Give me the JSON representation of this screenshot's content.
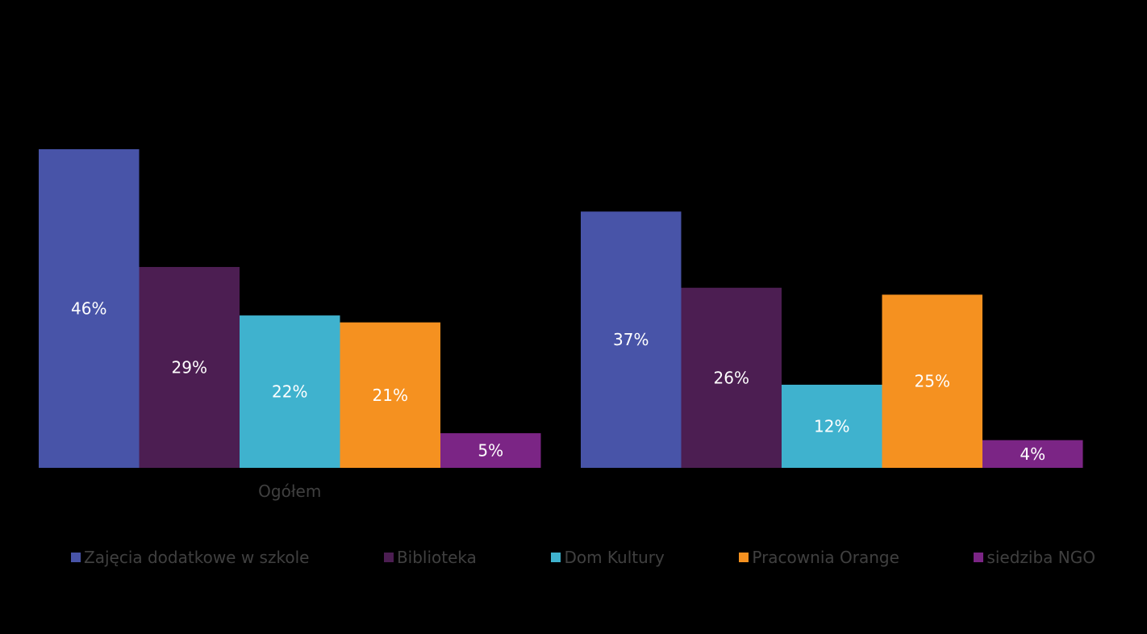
{
  "chart_data": {
    "type": "bar",
    "categories": [
      "Ogółem",
      ""
    ],
    "series": [
      {
        "name": "Zajęcia dodatkowe w szkole",
        "values": [
          46,
          37
        ],
        "color": "#4854A8",
        "labels": [
          "46%",
          "37%"
        ]
      },
      {
        "name": "Biblioteka",
        "values": [
          29,
          26
        ],
        "color": "#4C1E52",
        "labels": [
          "29%",
          "26%"
        ]
      },
      {
        "name": "Dom Kultury",
        "values": [
          22,
          12
        ],
        "color": "#3FB2CE",
        "labels": [
          "22%",
          "12%"
        ]
      },
      {
        "name": "Pracownia Orange",
        "values": [
          21,
          25
        ],
        "color": "#F59120",
        "labels": [
          "21%",
          "25%"
        ]
      },
      {
        "name": "siedziba NGO",
        "values": [
          5,
          4
        ],
        "color": "#7B2585",
        "labels": [
          "5%",
          "4%"
        ]
      }
    ],
    "ylim": [
      0,
      46
    ],
    "legend": "bottom",
    "grid": false
  }
}
